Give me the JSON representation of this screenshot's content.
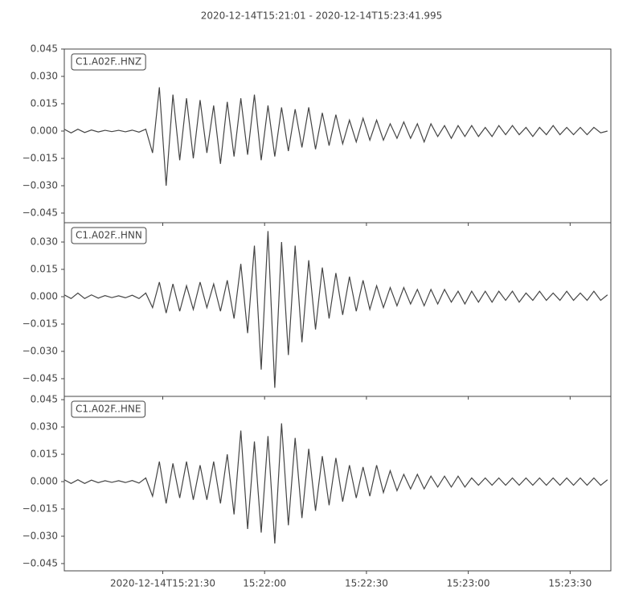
{
  "title": "2020-12-14T15:21:01  -  2020-12-14T15:23:41.995",
  "chart_data": [
    {
      "type": "line",
      "xlim": [
        0,
        160.995
      ],
      "ylim": [
        -0.0503,
        0.045
      ],
      "yticks": [
        {
          "value": 0.045,
          "label": "0.045"
        },
        {
          "value": 0.03,
          "label": "0.030"
        },
        {
          "value": 0.015,
          "label": "0.015"
        },
        {
          "value": 0,
          "label": "0.000"
        },
        {
          "value": -0.015,
          "label": "−0.015"
        },
        {
          "value": -0.03,
          "label": "−0.030"
        },
        {
          "value": -0.045,
          "label": "−0.045"
        }
      ],
      "x": [
        0,
        2,
        4,
        6,
        8,
        10,
        12,
        14,
        16,
        18,
        20,
        22,
        24,
        26,
        28,
        30,
        32,
        34,
        36,
        38,
        40,
        42,
        44,
        46,
        48,
        50,
        52,
        54,
        56,
        58,
        60,
        62,
        64,
        66,
        68,
        70,
        72,
        74,
        76,
        78,
        80,
        82,
        84,
        86,
        88,
        90,
        92,
        94,
        96,
        98,
        100,
        102,
        104,
        106,
        108,
        110,
        112,
        114,
        116,
        118,
        120,
        122,
        124,
        126,
        128,
        130,
        132,
        134,
        136,
        138,
        140,
        142,
        144,
        146,
        148,
        150,
        152,
        154,
        156,
        158,
        160
      ],
      "series": [
        {
          "name": "C1.A02F..HNZ",
          "color": "#444444",
          "values": [
            0.001,
            -0.001,
            0.001,
            -0.0008,
            0.0006,
            -0.0005,
            0.0004,
            -0.0003,
            0.0004,
            -0.0004,
            0.0005,
            -0.0006,
            0.001,
            -0.012,
            0.024,
            -0.03,
            0.02,
            -0.016,
            0.018,
            -0.015,
            0.017,
            -0.012,
            0.014,
            -0.018,
            0.016,
            -0.014,
            0.018,
            -0.013,
            0.02,
            -0.016,
            0.014,
            -0.014,
            0.013,
            -0.011,
            0.012,
            -0.009,
            0.013,
            -0.01,
            0.01,
            -0.008,
            0.009,
            -0.007,
            0.006,
            -0.006,
            0.007,
            -0.005,
            0.006,
            -0.005,
            0.004,
            -0.004,
            0.005,
            -0.004,
            0.004,
            -0.006,
            0.004,
            -0.003,
            0.003,
            -0.004,
            0.003,
            -0.003,
            0.003,
            -0.003,
            0.002,
            -0.003,
            0.003,
            -0.002,
            0.003,
            -0.002,
            0.002,
            -0.003,
            0.002,
            -0.002,
            0.003,
            -0.002,
            0.002,
            -0.002,
            0.002,
            -0.002,
            0.002,
            -0.001,
            0.0
          ]
        }
      ]
    },
    {
      "type": "line",
      "xlim": [
        0,
        160.995
      ],
      "ylim": [
        -0.0547,
        0.0406
      ],
      "yticks": [
        {
          "value": 0.03,
          "label": "0.030"
        },
        {
          "value": 0.015,
          "label": "0.015"
        },
        {
          "value": 0,
          "label": "0.000"
        },
        {
          "value": -0.015,
          "label": "−0.015"
        },
        {
          "value": -0.03,
          "label": "−0.030"
        },
        {
          "value": -0.045,
          "label": "−0.045"
        }
      ],
      "x": [
        0,
        2,
        4,
        6,
        8,
        10,
        12,
        14,
        16,
        18,
        20,
        22,
        24,
        26,
        28,
        30,
        32,
        34,
        36,
        38,
        40,
        42,
        44,
        46,
        48,
        50,
        52,
        54,
        56,
        58,
        60,
        62,
        64,
        66,
        68,
        70,
        72,
        74,
        76,
        78,
        80,
        82,
        84,
        86,
        88,
        90,
        92,
        94,
        96,
        98,
        100,
        102,
        104,
        106,
        108,
        110,
        112,
        114,
        116,
        118,
        120,
        122,
        124,
        126,
        128,
        130,
        132,
        134,
        136,
        138,
        140,
        142,
        144,
        146,
        148,
        150,
        152,
        154,
        156,
        158,
        160
      ],
      "series": [
        {
          "name": "C1.A02F..HNN",
          "color": "#444444",
          "values": [
            0.001,
            -0.001,
            0.002,
            -0.001,
            0.001,
            -0.0008,
            0.0006,
            -0.0005,
            0.0005,
            -0.0006,
            0.0008,
            -0.001,
            0.002,
            -0.006,
            0.008,
            -0.009,
            0.007,
            -0.008,
            0.006,
            -0.007,
            0.008,
            -0.006,
            0.007,
            -0.008,
            0.009,
            -0.012,
            0.018,
            -0.02,
            0.028,
            -0.04,
            0.036,
            -0.05,
            0.03,
            -0.032,
            0.028,
            -0.025,
            0.02,
            -0.018,
            0.016,
            -0.012,
            0.013,
            -0.01,
            0.011,
            -0.008,
            0.009,
            -0.007,
            0.006,
            -0.006,
            0.005,
            -0.005,
            0.005,
            -0.004,
            0.004,
            -0.005,
            0.004,
            -0.004,
            0.004,
            -0.003,
            0.003,
            -0.004,
            0.003,
            -0.003,
            0.003,
            -0.003,
            0.003,
            -0.002,
            0.003,
            -0.003,
            0.002,
            -0.002,
            0.003,
            -0.002,
            0.002,
            -0.002,
            0.003,
            -0.002,
            0.002,
            -0.002,
            0.003,
            -0.002,
            0.001
          ]
        }
      ]
    },
    {
      "type": "line",
      "xlim": [
        0,
        160.995
      ],
      "ylim": [
        -0.049,
        0.0468
      ],
      "yticks": [
        {
          "value": 0.045,
          "label": "0.045"
        },
        {
          "value": 0.03,
          "label": "0.030"
        },
        {
          "value": 0.015,
          "label": "0.015"
        },
        {
          "value": 0,
          "label": "0.000"
        },
        {
          "value": -0.015,
          "label": "−0.015"
        },
        {
          "value": -0.03,
          "label": "−0.030"
        },
        {
          "value": -0.045,
          "label": "−0.045"
        }
      ],
      "xticks": [
        {
          "value": 29,
          "label": "2020-12-14T15:21:30"
        },
        {
          "value": 59,
          "label": "15:22:00"
        },
        {
          "value": 89,
          "label": "15:22:30"
        },
        {
          "value": 119,
          "label": "15:23:00"
        },
        {
          "value": 149,
          "label": "15:23:30"
        }
      ],
      "x": [
        0,
        2,
        4,
        6,
        8,
        10,
        12,
        14,
        16,
        18,
        20,
        22,
        24,
        26,
        28,
        30,
        32,
        34,
        36,
        38,
        40,
        42,
        44,
        46,
        48,
        50,
        52,
        54,
        56,
        58,
        60,
        62,
        64,
        66,
        68,
        70,
        72,
        74,
        76,
        78,
        80,
        82,
        84,
        86,
        88,
        90,
        92,
        94,
        96,
        98,
        100,
        102,
        104,
        106,
        108,
        110,
        112,
        114,
        116,
        118,
        120,
        122,
        124,
        126,
        128,
        130,
        132,
        134,
        136,
        138,
        140,
        142,
        144,
        146,
        148,
        150,
        152,
        154,
        156,
        158,
        160
      ],
      "series": [
        {
          "name": "C1.A02F..HNE",
          "color": "#444444",
          "values": [
            0.001,
            -0.001,
            0.001,
            -0.001,
            0.0008,
            -0.0006,
            0.0005,
            -0.0004,
            0.0005,
            -0.0005,
            0.0006,
            -0.0008,
            0.002,
            -0.008,
            0.011,
            -0.012,
            0.01,
            -0.009,
            0.011,
            -0.01,
            0.009,
            -0.01,
            0.011,
            -0.012,
            0.015,
            -0.018,
            0.028,
            -0.026,
            0.022,
            -0.028,
            0.025,
            -0.034,
            0.032,
            -0.024,
            0.024,
            -0.02,
            0.018,
            -0.016,
            0.014,
            -0.013,
            0.013,
            -0.011,
            0.009,
            -0.009,
            0.008,
            -0.008,
            0.009,
            -0.006,
            0.006,
            -0.005,
            0.004,
            -0.004,
            0.004,
            -0.004,
            0.003,
            -0.003,
            0.003,
            -0.003,
            0.003,
            -0.003,
            0.002,
            -0.002,
            0.002,
            -0.002,
            0.002,
            -0.002,
            0.002,
            -0.002,
            0.002,
            -0.002,
            0.002,
            -0.002,
            0.002,
            -0.002,
            0.002,
            -0.002,
            0.002,
            -0.002,
            0.002,
            -0.002,
            0.001
          ]
        }
      ]
    }
  ]
}
